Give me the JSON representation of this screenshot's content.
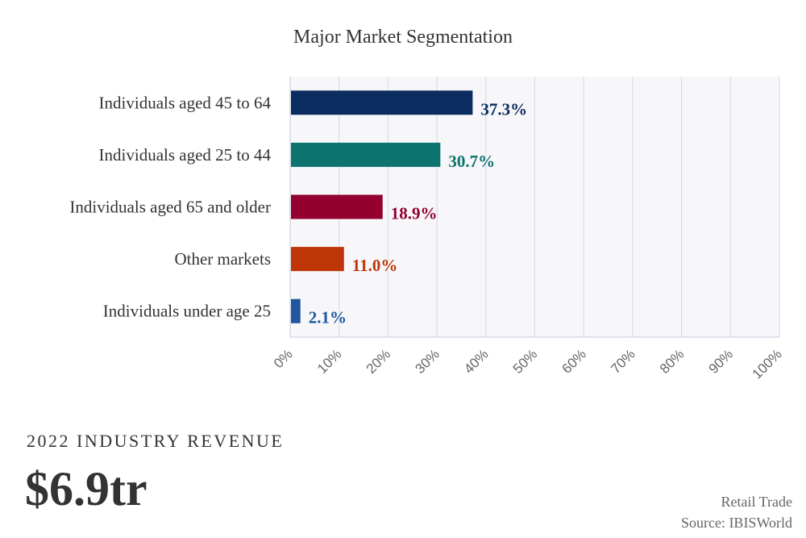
{
  "chart_data": {
    "type": "bar",
    "orientation": "horizontal",
    "title": "Major Market Segmentation",
    "categories": [
      "Individuals aged 45 to 64",
      "Individuals aged 25 to 44",
      "Individuals aged 65 and older",
      "Other markets",
      "Individuals under age 25"
    ],
    "values": [
      37.3,
      30.7,
      18.9,
      11.0,
      2.1
    ],
    "value_labels": [
      "37.3%",
      "30.7%",
      "18.9%",
      "11.0%",
      "2.1%"
    ],
    "colors": [
      "#0b2c5f",
      "#0d7470",
      "#94002f",
      "#be3507",
      "#1f56a0"
    ],
    "xlim": [
      0,
      100
    ],
    "x_ticks": [
      0,
      10,
      20,
      30,
      40,
      50,
      60,
      70,
      80,
      90,
      100
    ],
    "x_tick_labels": [
      "0%",
      "10%",
      "20%",
      "30%",
      "40%",
      "50%",
      "60%",
      "70%",
      "80%",
      "90%",
      "100%"
    ],
    "grid": true,
    "xlabel": "",
    "ylabel": ""
  },
  "revenue": {
    "caption": "2022 INDUSTRY REVENUE",
    "value": "$6.9tr"
  },
  "footer": {
    "industry": "Retail Trade",
    "source": "Source: IBISWorld"
  }
}
